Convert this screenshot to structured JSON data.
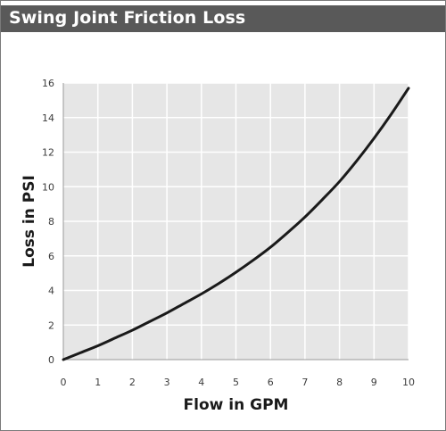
{
  "chart_data": {
    "type": "line",
    "title": "Swing Joint Friction Loss",
    "xlabel": "Flow in GPM",
    "ylabel": "Loss in PSI",
    "xlim": [
      0,
      10
    ],
    "ylim": [
      0,
      16
    ],
    "xticks": [
      "0",
      "1",
      "2",
      "3",
      "4",
      "5",
      "6",
      "7",
      "8",
      "9",
      "10"
    ],
    "yticks": [
      "0",
      "2",
      "4",
      "6",
      "8",
      "10",
      "12",
      "14",
      "16"
    ],
    "grid": true,
    "colors": {
      "line": "#1a1a1a",
      "plot_bg": "#e6e6e6",
      "grid": "#ffffff",
      "title_bg": "#595959"
    },
    "series": [
      {
        "x": [
          0,
          0.5,
          1,
          1.5,
          2,
          2.5,
          3,
          3.5,
          4,
          4.5,
          5,
          5.5,
          6,
          6.5,
          7,
          7.5,
          8,
          8.5,
          9,
          9.5,
          10
        ],
        "values": [
          0,
          0.4,
          0.8,
          1.25,
          1.7,
          2.2,
          2.7,
          3.25,
          3.8,
          4.4,
          5.05,
          5.75,
          6.5,
          7.35,
          8.25,
          9.25,
          10.3,
          11.5,
          12.8,
          14.2,
          15.7
        ]
      }
    ]
  }
}
